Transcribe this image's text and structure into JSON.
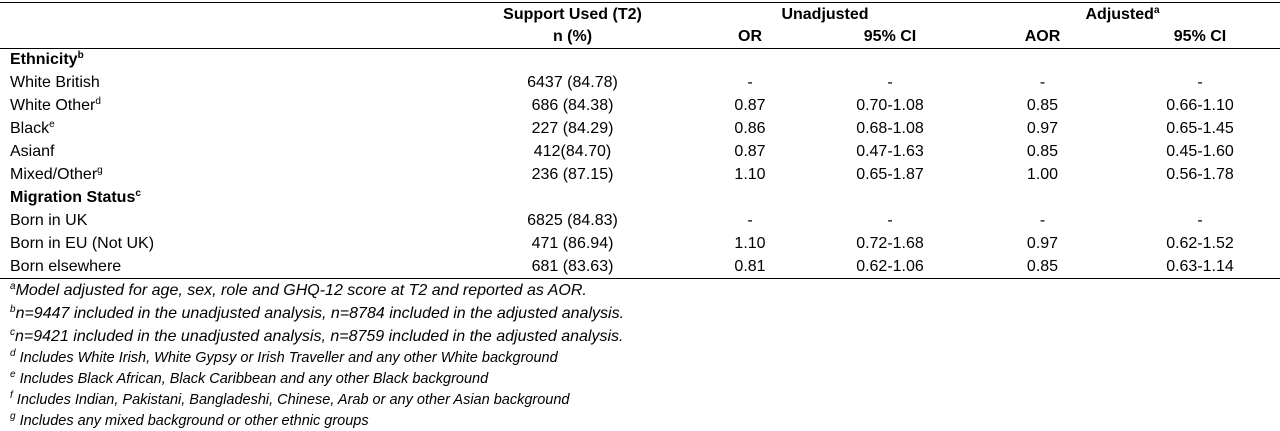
{
  "header": {
    "support_used": "Support Used (T2)",
    "unadjusted": "Unadjusted",
    "adjusted": {
      "text": "Adjusted",
      "sup": "a"
    },
    "columns": [
      "n (%)",
      "OR",
      "95% CI",
      "AOR",
      "95% CI"
    ]
  },
  "sections": [
    {
      "title": {
        "text": "Ethnicity",
        "sup": "b"
      },
      "rows": [
        {
          "label": {
            "text": "White British"
          },
          "cells": [
            "6437 (84.78)",
            "-",
            "-",
            "-",
            "-"
          ]
        },
        {
          "label": {
            "text": "White Other",
            "sup": "d"
          },
          "cells": [
            "686 (84.38)",
            "0.87",
            "0.70-1.08",
            "0.85",
            "0.66-1.10"
          ]
        },
        {
          "label": {
            "text": "Black",
            "sup": "e"
          },
          "cells": [
            "227 (84.29)",
            "0.86",
            "0.68-1.08",
            "0.97",
            "0.65-1.45"
          ]
        },
        {
          "label": {
            "text": "Asianf"
          },
          "cells": [
            "412(84.70)",
            "0.87",
            "0.47-1.63",
            "0.85",
            "0.45-1.60"
          ]
        },
        {
          "label": {
            "text": "Mixed/Other",
            "sup": "g"
          },
          "cells": [
            "236 (87.15)",
            "1.10",
            "0.65-1.87",
            "1.00",
            "0.56-1.78"
          ]
        }
      ]
    },
    {
      "title": {
        "text": "Migration Status",
        "sup": "c"
      },
      "rows": [
        {
          "label": {
            "text": "Born in UK"
          },
          "cells": [
            "6825 (84.83)",
            "-",
            "-",
            "-",
            "-"
          ]
        },
        {
          "label": {
            "text": "Born in EU (Not UK)"
          },
          "cells": [
            "471 (86.94)",
            "1.10",
            "0.72-1.68",
            "0.97",
            "0.62-1.52"
          ]
        },
        {
          "label": {
            "text": "Born elsewhere"
          },
          "cells": [
            "681 (83.63)",
            "0.81",
            "0.62-1.06",
            "0.85",
            "0.63-1.14"
          ]
        }
      ]
    }
  ],
  "footnotes": [
    {
      "sup": "a",
      "text": "Model adjusted for age, sex, role and GHQ-12 score at T2 and reported as AOR."
    },
    {
      "sup": "b",
      "text": "n=9447 included in the unadjusted analysis, n=8784 included in the adjusted analysis."
    },
    {
      "sup": "c",
      "text": "n=9421 included in the unadjusted analysis, n=8759 included in the adjusted analysis."
    },
    {
      "sup": "d",
      "text": " Includes White Irish, White Gypsy or Irish Traveller and any other White background"
    },
    {
      "sup": "e",
      "text": " Includes Black African, Black Caribbean and any other Black background"
    },
    {
      "sup": "f",
      "text": " Includes Indian, Pakistani, Bangladeshi, Chinese, Arab or any other Asian background"
    },
    {
      "sup": "g",
      "text": " Includes any mixed background or other ethnic groups"
    }
  ]
}
